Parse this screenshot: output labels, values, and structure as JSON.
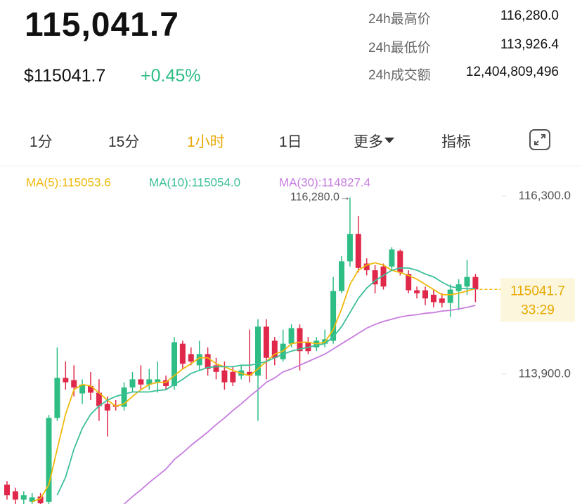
{
  "header": {
    "price": "115,041.7",
    "usd_price": "$115041.7",
    "change": "+0.45%",
    "stats": [
      {
        "label": "24h最高价",
        "value": "116,280.0"
      },
      {
        "label": "24h最低价",
        "value": "113,926.4"
      },
      {
        "label": "24h成交额",
        "value": "12,404,809,496"
      }
    ]
  },
  "tabs": [
    "1分",
    "15分",
    "1小时",
    "1日",
    "更多",
    "指标"
  ],
  "chart_data": {
    "type": "candlestick",
    "ylim": [
      112150,
      116700
    ],
    "yticks": [
      {
        "value": 116300,
        "label": "116,300.0"
      },
      {
        "value": 113900,
        "label": "113,900.0"
      }
    ],
    "up_color": "#2ebd85",
    "down_color": "#e0294a",
    "open": [
      112410,
      112320,
      112210,
      112180,
      112250,
      112180,
      113310,
      113850,
      113820,
      113640,
      113740,
      113650,
      113500,
      113480,
      113460,
      113720,
      113830,
      113760,
      113790,
      113820,
      113740,
      114310,
      114170,
      114020,
      114170,
      114020,
      113950,
      113930,
      113880,
      113930,
      113880,
      114540,
      114350,
      114100,
      114310,
      114520,
      114330,
      114260,
      114310,
      114350,
      115020,
      115420,
      115790,
      115390,
      115300,
      115350,
      115350,
      115560,
      115250,
      115030,
      115030,
      114970,
      114920,
      114860,
      115020,
      115080,
      115210
    ],
    "high": [
      112460,
      112370,
      112320,
      112300,
      112300,
      113350,
      114260,
      114070,
      114020,
      113830,
      113930,
      113830,
      113600,
      113550,
      113790,
      113930,
      114020,
      113970,
      114070,
      113880,
      114400,
      114350,
      114260,
      114350,
      114260,
      114120,
      114070,
      114000,
      114020,
      114500,
      114640,
      114640,
      114400,
      114500,
      114570,
      114570,
      114400,
      114400,
      114500,
      115210,
      115490,
      116280,
      116030,
      115460,
      115370,
      115390,
      115610,
      115580,
      115300,
      115080,
      115080,
      115040,
      114990,
      115110,
      115180,
      115440,
      115250
    ],
    "low": [
      112210,
      112150,
      112150,
      112150,
      112150,
      112150,
      113270,
      113690,
      113600,
      113500,
      113550,
      113270,
      113060,
      113410,
      113410,
      113660,
      113690,
      113690,
      113650,
      113690,
      113690,
      113970,
      114020,
      113950,
      113880,
      113830,
      113690,
      113740,
      113830,
      113790,
      113270,
      113830,
      114020,
      114070,
      114260,
      113950,
      114170,
      114210,
      114260,
      114310,
      114990,
      115350,
      115270,
      115230,
      114990,
      115040,
      115300,
      115230,
      114990,
      114920,
      114830,
      114800,
      114800,
      114670,
      114760,
      114970,
      114870
    ],
    "close": [
      112270,
      112210,
      112270,
      112240,
      112160,
      113310,
      113850,
      113790,
      113720,
      113760,
      113650,
      113470,
      113410,
      113460,
      113720,
      113830,
      113760,
      113830,
      113830,
      113740,
      114330,
      114040,
      114070,
      114170,
      113970,
      113930,
      113790,
      113790,
      113950,
      113880,
      114540,
      114120,
      114120,
      114310,
      114520,
      114210,
      114210,
      114350,
      114370,
      115020,
      115420,
      115790,
      115330,
      115300,
      115110,
      115080,
      115580,
      115270,
      115030,
      114990,
      114920,
      114870,
      114860,
      115040,
      115110,
      115210,
      115041.7
    ],
    "series": [
      {
        "name": "MA(5):115053.6",
        "color": "#f0b90b",
        "values": [
          null,
          null,
          null,
          112180,
          112225,
          112410,
          112890,
          113360,
          113690,
          113760,
          113740,
          113650,
          113550,
          113470,
          113500,
          113600,
          113690,
          113760,
          113790,
          113790,
          113880,
          113970,
          114040,
          114120,
          114120,
          114040,
          114000,
          113950,
          113910,
          113880,
          113970,
          114070,
          114170,
          114210,
          114310,
          114330,
          114330,
          114310,
          114330,
          114500,
          114780,
          115110,
          115300,
          115370,
          115400,
          115370,
          115300,
          115270,
          115230,
          115180,
          115110,
          115040,
          114970,
          114970,
          114990,
          115020,
          115053.6
        ]
      },
      {
        "name": "MA(10):115054.0",
        "color": "#3dbf9a",
        "values": [
          null,
          null,
          null,
          null,
          null,
          null,
          112270,
          112510,
          112890,
          113170,
          113360,
          113470,
          113550,
          113600,
          113630,
          113660,
          113660,
          113660,
          113680,
          113690,
          113760,
          113830,
          113910,
          113950,
          113990,
          114000,
          114000,
          114000,
          114020,
          114020,
          114040,
          114070,
          114120,
          114170,
          114210,
          114240,
          114260,
          114290,
          114310,
          114400,
          114540,
          114730,
          114920,
          115060,
          115160,
          115230,
          115300,
          115330,
          115330,
          115300,
          115250,
          115210,
          115140,
          115080,
          115060,
          115050,
          115054
        ]
      },
      {
        "name": "MA(30):114827.4",
        "color": "#c77ddf",
        "values": [
          null,
          null,
          null,
          null,
          null,
          null,
          null,
          null,
          null,
          null,
          null,
          null,
          null,
          null,
          112150,
          112250,
          112340,
          112440,
          112530,
          112620,
          112750,
          112840,
          112940,
          113030,
          113120,
          113220,
          113310,
          113410,
          113500,
          113600,
          113690,
          113790,
          113850,
          113930,
          113970,
          114020,
          114070,
          114120,
          114170,
          114240,
          114310,
          114380,
          114450,
          114520,
          114570,
          114610,
          114640,
          114670,
          114690,
          114700,
          114720,
          114730,
          114750,
          114760,
          114780,
          114800,
          114827.4
        ]
      }
    ],
    "high_annotation": {
      "value": 116280,
      "label": "116,280.0→"
    },
    "last_price": 115041.7,
    "countdown": "33:29"
  }
}
